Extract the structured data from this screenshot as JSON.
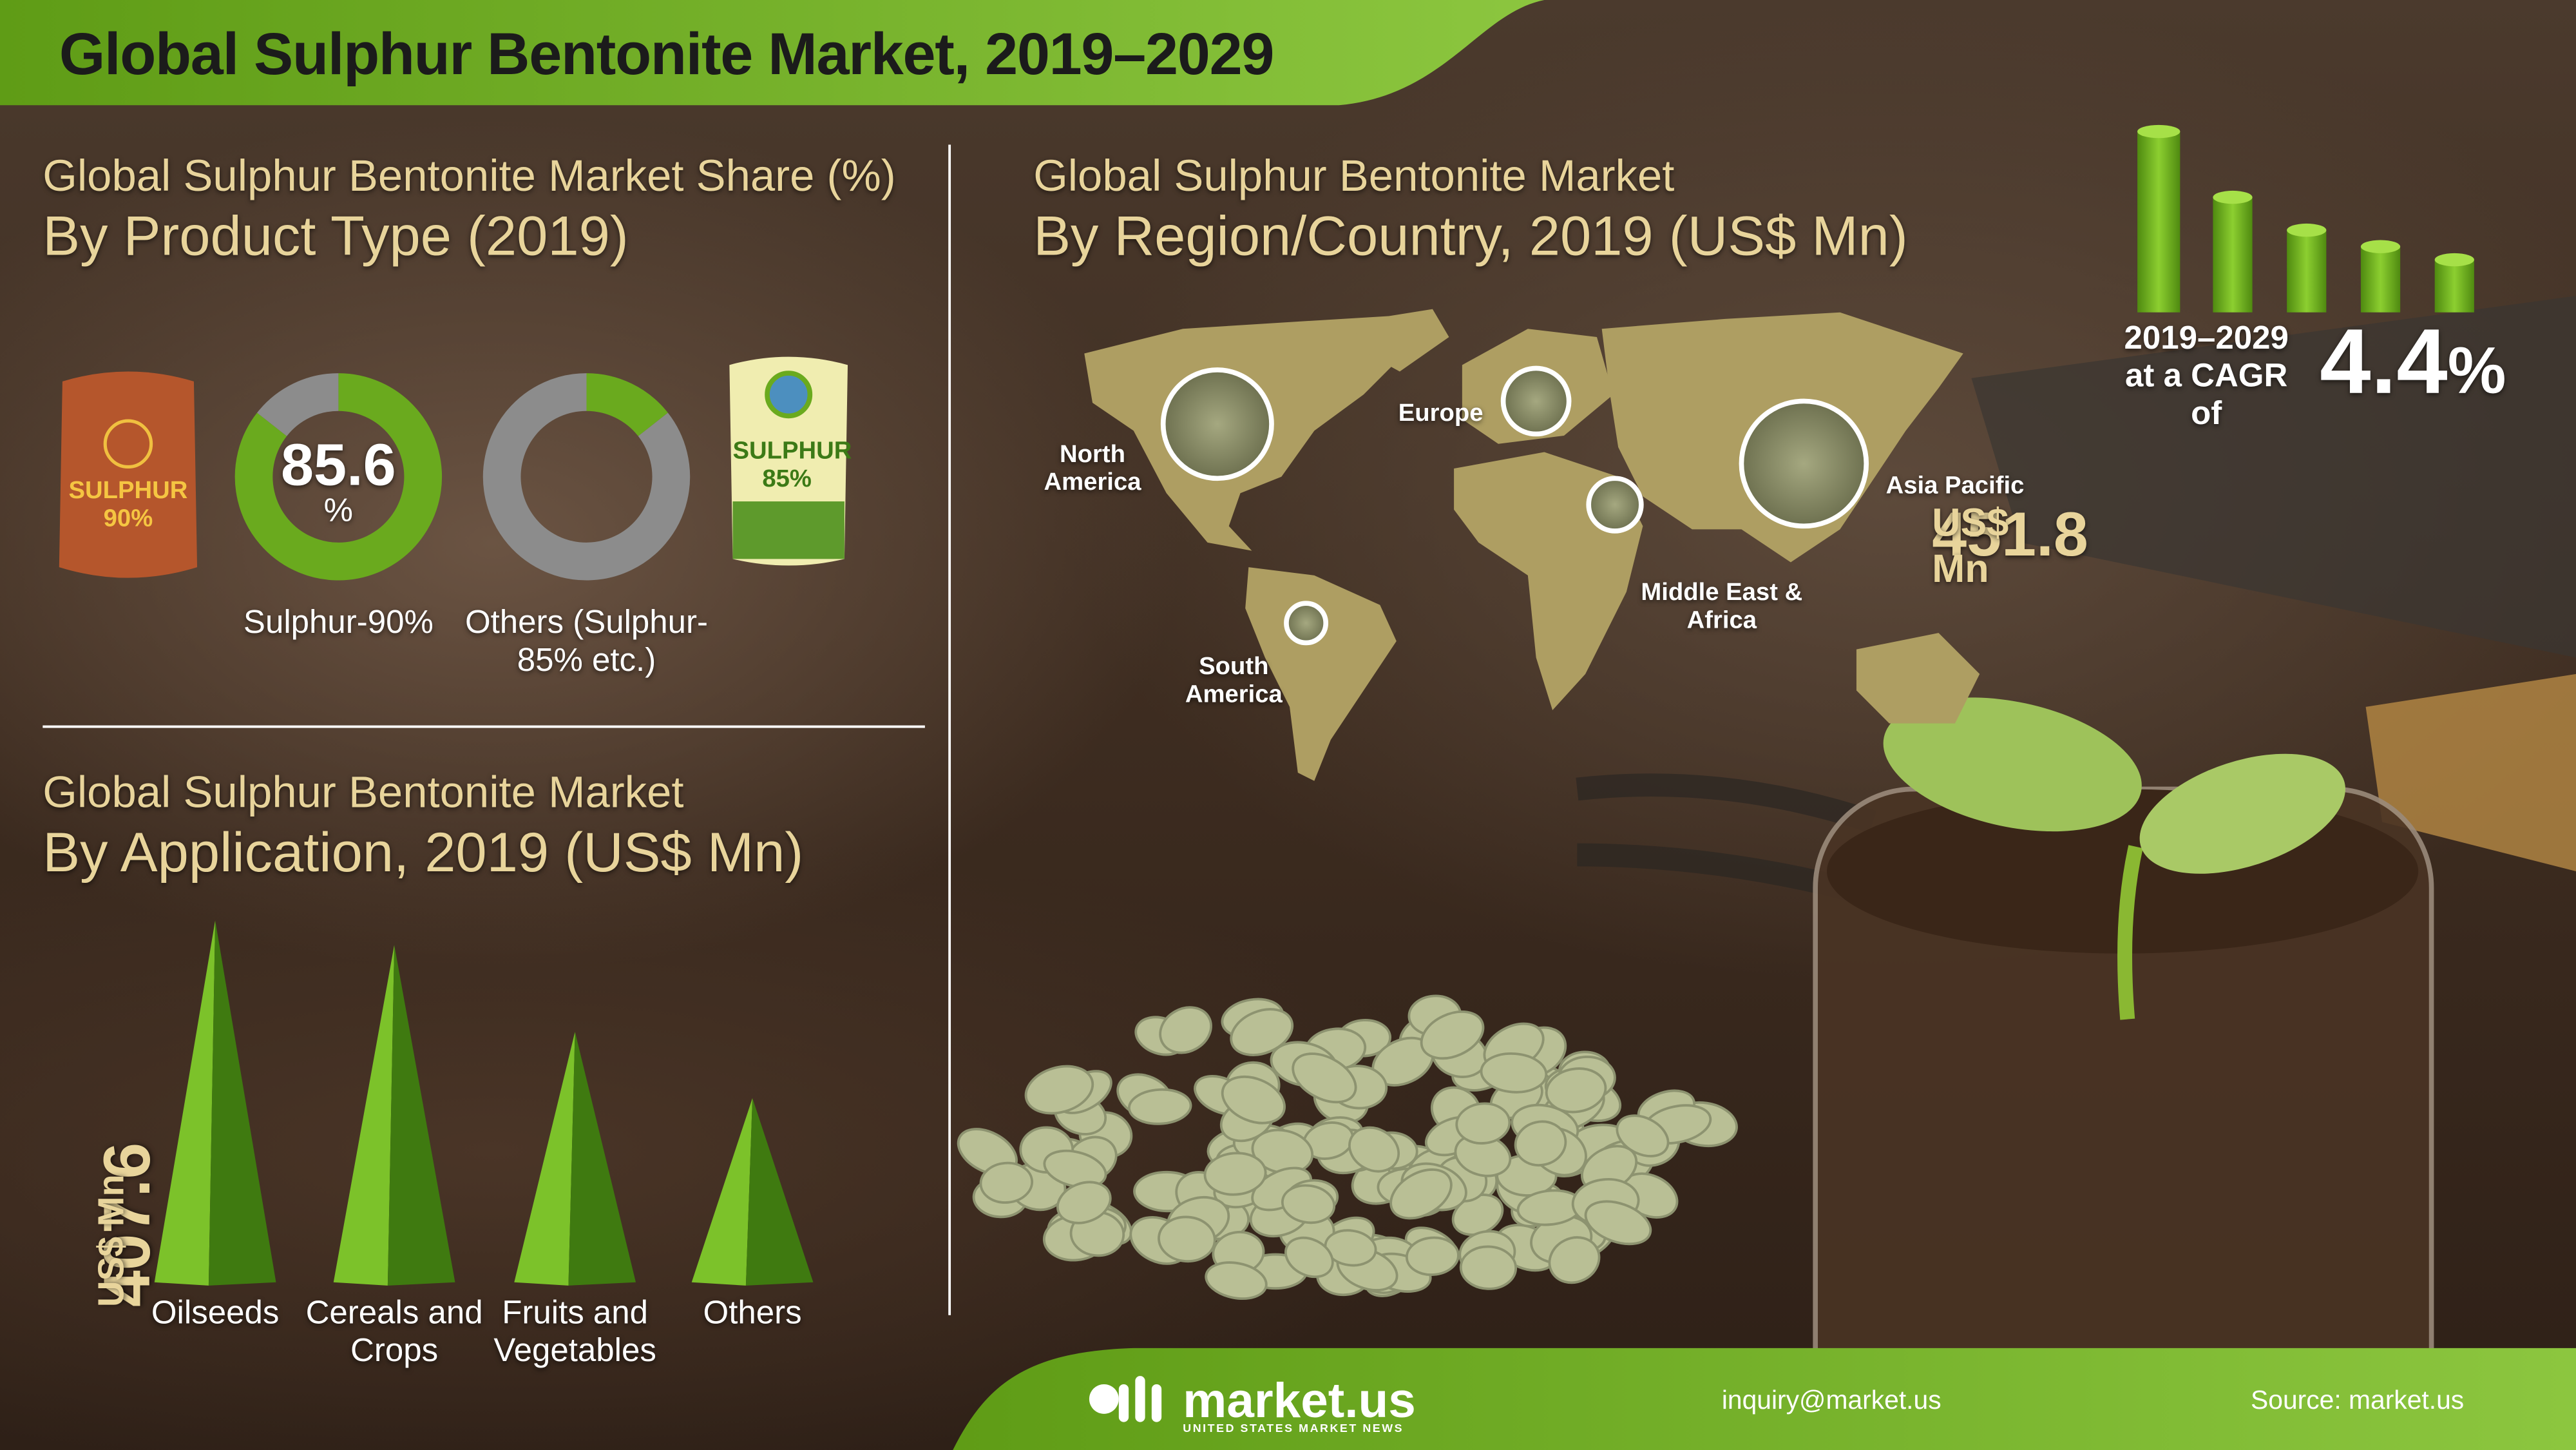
{
  "header": {
    "title": "Global Sulphur Bentonite Market, 2019–2029"
  },
  "chart_data": [
    {
      "type": "donut",
      "title": "Global Sulphur Bentonite Market Share (%)",
      "subtitle": "By Product Type (2019)",
      "categories": [
        "Sulphur-90%",
        "Others (Sulphur-85% etc.)"
      ],
      "values": [
        85.6,
        14.4
      ],
      "value_labels": [
        "85.6",
        null
      ],
      "value_unit": "%",
      "color": "#6aaa1e",
      "rest_color": "#8c8c8c",
      "icons": [
        "SULPHUR 90%",
        "SULPHUR 85%"
      ]
    },
    {
      "type": "bubble-map",
      "title": "Global Sulphur Bentonite Market",
      "subtitle": "By Region/Country, 2019 (US$ Mn)",
      "categories": [
        "North America",
        "Europe",
        "South America",
        "Middle East & Africa",
        "Asia Pacific"
      ],
      "values": [
        340.7,
        125.2,
        45.1,
        80.1,
        451.8
      ],
      "value_labels": [
        null,
        null,
        null,
        null,
        "451.8"
      ],
      "value_unit": "US$ Mn"
    },
    {
      "type": "pyramid",
      "title": "Global Sulphur Bentonite Market",
      "subtitle": "By Application, 2019 (US$ Mn)",
      "categories": [
        "Oilseeds",
        "Cereals and Crops",
        "Fruits and Vegetables",
        "Others"
      ],
      "values": [
        407.6,
        380.0,
        282.2,
        207.5
      ],
      "value_labels": [
        "407.6",
        null,
        null,
        null
      ],
      "value_unit": "US$ Mn",
      "ylim": [
        0,
        450
      ],
      "color": "#6aaa1e"
    }
  ],
  "cagr": {
    "label": "2019–2029 at a CAGR of",
    "value": 4.4,
    "unit": "%"
  },
  "footer": {
    "brand": "market.us",
    "tagline": "UNITED STATES MARKET NEWS",
    "email": "inquiry@market.us",
    "source": "Source: market.us"
  }
}
